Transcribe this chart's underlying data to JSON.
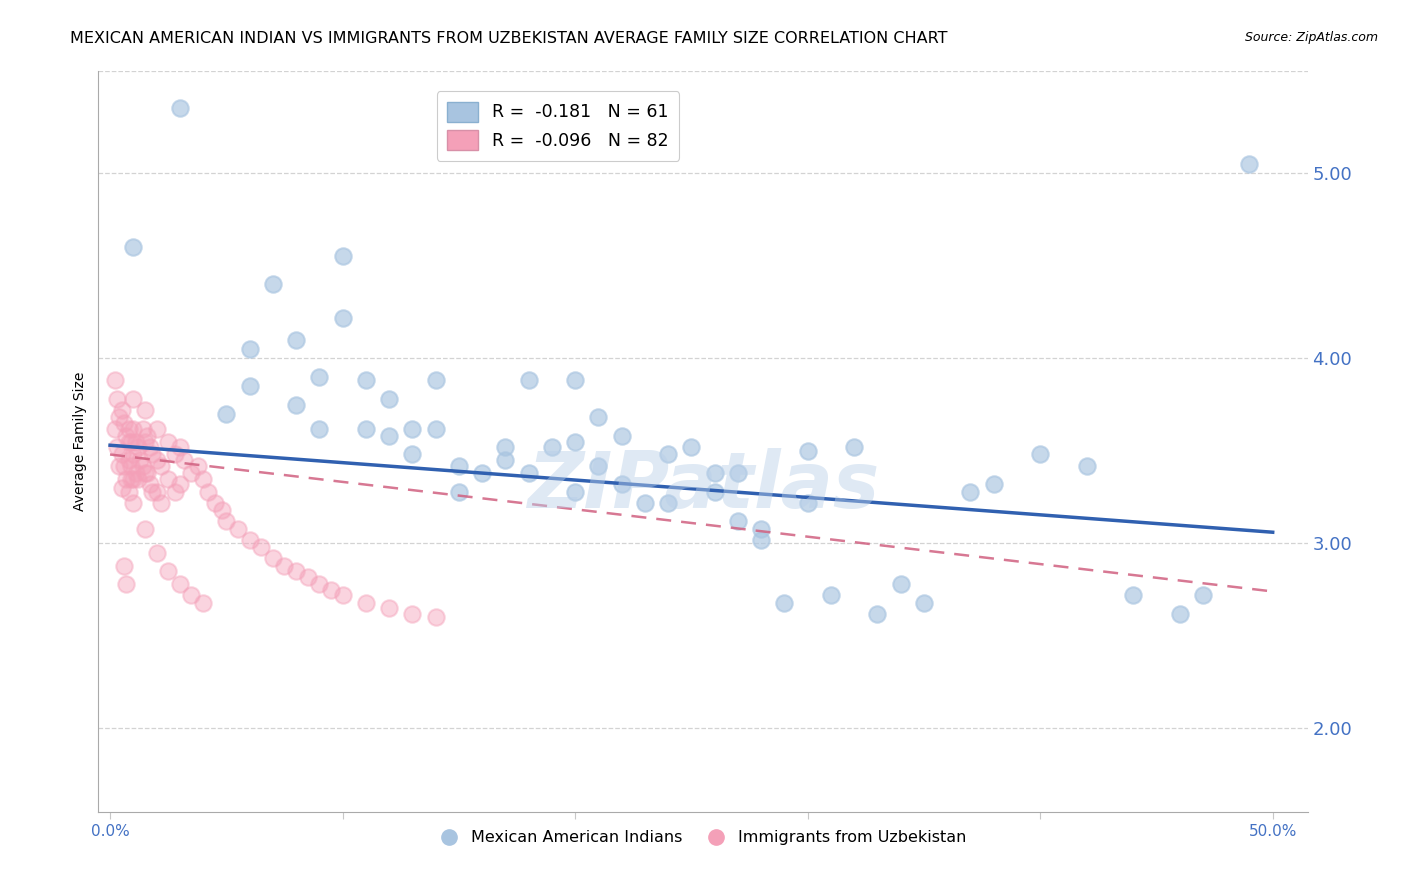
{
  "title": "MEXICAN AMERICAN INDIAN VS IMMIGRANTS FROM UZBEKISTAN AVERAGE FAMILY SIZE CORRELATION CHART",
  "source": "Source: ZipAtlas.com",
  "ylabel": "Average Family Size",
  "yticks_right": [
    2.0,
    3.0,
    4.0,
    5.0
  ],
  "x_bottom_ticks": [
    0.0,
    0.1,
    0.2,
    0.3,
    0.4,
    0.5
  ],
  "x_bottom_labels": [
    "0.0%",
    "",
    "",
    "",
    "",
    "50.0%"
  ],
  "legend_r1": "R =  -0.181   N = 61",
  "legend_r2": "R =  -0.096   N = 82",
  "legend_label1": "Mexican American Indians",
  "legend_label2": "Immigrants from Uzbekistan",
  "blue_scatter_color": "#a8c4e0",
  "pink_scatter_color": "#f4a0b8",
  "blue_line_color": "#3060b0",
  "pink_line_color": "#d06080",
  "watermark": "ZIPatlas",
  "blue_x": [
    0.49,
    0.01,
    0.03,
    0.05,
    0.06,
    0.06,
    0.07,
    0.08,
    0.08,
    0.09,
    0.09,
    0.1,
    0.11,
    0.11,
    0.12,
    0.12,
    0.13,
    0.14,
    0.14,
    0.15,
    0.15,
    0.16,
    0.17,
    0.18,
    0.18,
    0.19,
    0.2,
    0.2,
    0.21,
    0.21,
    0.22,
    0.22,
    0.23,
    0.24,
    0.24,
    0.25,
    0.26,
    0.27,
    0.27,
    0.28,
    0.28,
    0.29,
    0.3,
    0.31,
    0.32,
    0.33,
    0.34,
    0.35,
    0.37,
    0.38,
    0.4,
    0.42,
    0.44,
    0.46,
    0.47,
    0.3,
    0.26,
    0.2,
    0.17,
    0.13,
    0.1
  ],
  "blue_y": [
    5.05,
    4.6,
    5.35,
    3.7,
    4.05,
    3.85,
    4.4,
    4.1,
    3.75,
    3.9,
    3.62,
    4.22,
    3.88,
    3.62,
    3.58,
    3.78,
    3.48,
    3.88,
    3.62,
    3.42,
    3.28,
    3.38,
    3.52,
    3.88,
    3.38,
    3.52,
    3.88,
    3.55,
    3.68,
    3.42,
    3.58,
    3.32,
    3.22,
    3.48,
    3.22,
    3.52,
    3.28,
    3.38,
    3.12,
    3.08,
    3.02,
    2.68,
    3.22,
    2.72,
    3.52,
    2.62,
    2.78,
    2.68,
    3.28,
    3.32,
    3.48,
    3.42,
    2.72,
    2.62,
    2.72,
    3.5,
    3.38,
    3.28,
    3.45,
    3.62,
    4.55
  ],
  "pink_x": [
    0.002,
    0.002,
    0.003,
    0.003,
    0.004,
    0.004,
    0.005,
    0.005,
    0.005,
    0.006,
    0.006,
    0.007,
    0.007,
    0.008,
    0.008,
    0.008,
    0.009,
    0.009,
    0.01,
    0.01,
    0.01,
    0.01,
    0.01,
    0.011,
    0.011,
    0.012,
    0.012,
    0.013,
    0.014,
    0.014,
    0.015,
    0.015,
    0.015,
    0.016,
    0.016,
    0.017,
    0.017,
    0.018,
    0.018,
    0.02,
    0.02,
    0.02,
    0.022,
    0.022,
    0.025,
    0.025,
    0.028,
    0.028,
    0.03,
    0.03,
    0.032,
    0.035,
    0.038,
    0.04,
    0.042,
    0.045,
    0.048,
    0.05,
    0.055,
    0.06,
    0.065,
    0.07,
    0.075,
    0.08,
    0.085,
    0.09,
    0.095,
    0.1,
    0.11,
    0.12,
    0.13,
    0.14,
    0.015,
    0.02,
    0.025,
    0.03,
    0.035,
    0.04,
    0.006,
    0.007,
    0.008,
    0.009
  ],
  "pink_y": [
    3.88,
    3.62,
    3.78,
    3.52,
    3.68,
    3.42,
    3.72,
    3.48,
    3.3,
    3.65,
    3.42,
    3.58,
    3.35,
    3.62,
    3.45,
    3.28,
    3.55,
    3.35,
    3.78,
    3.62,
    3.48,
    3.35,
    3.22,
    3.55,
    3.38,
    3.52,
    3.35,
    3.45,
    3.62,
    3.42,
    3.72,
    3.55,
    3.38,
    3.58,
    3.38,
    3.52,
    3.32,
    3.48,
    3.28,
    3.62,
    3.45,
    3.28,
    3.42,
    3.22,
    3.55,
    3.35,
    3.48,
    3.28,
    3.52,
    3.32,
    3.45,
    3.38,
    3.42,
    3.35,
    3.28,
    3.22,
    3.18,
    3.12,
    3.08,
    3.02,
    2.98,
    2.92,
    2.88,
    2.85,
    2.82,
    2.78,
    2.75,
    2.72,
    2.68,
    2.65,
    2.62,
    2.6,
    3.08,
    2.95,
    2.85,
    2.78,
    2.72,
    2.68,
    2.88,
    2.78,
    3.55,
    3.42
  ],
  "blue_line_x": [
    0.0,
    0.5
  ],
  "blue_line_y": [
    3.53,
    3.06
  ],
  "pink_line_x": [
    0.0,
    0.5
  ],
  "pink_line_y": [
    3.48,
    2.74
  ],
  "xlim": [
    -0.005,
    0.515
  ],
  "ylim": [
    1.55,
    5.55
  ],
  "background_color": "#ffffff",
  "axis_color": "#4472c4",
  "grid_color": "#c8c8c8",
  "title_fontsize": 11.5,
  "source_fontsize": 9,
  "tick_fontsize": 11,
  "ylabel_fontsize": 10
}
